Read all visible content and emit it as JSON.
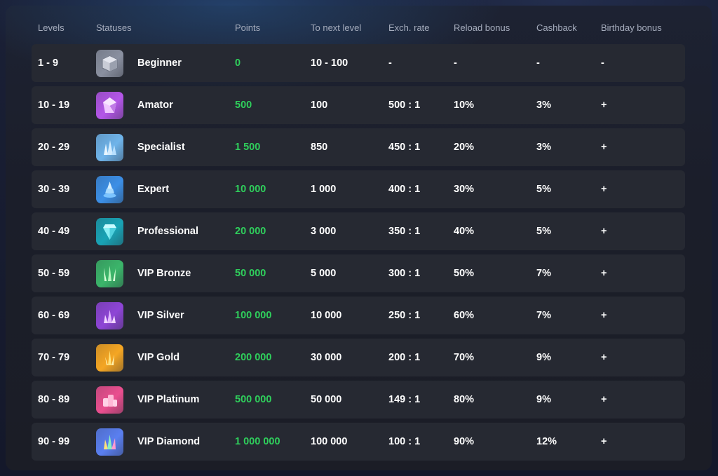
{
  "table": {
    "headers": {
      "levels": "Levels",
      "statuses": "Statuses",
      "points": "Points",
      "next": "To next level",
      "rate": "Exch. rate",
      "reload": "Reload bonus",
      "cashback": "Cashback",
      "birthday": "Birthday bonus"
    },
    "rows": [
      {
        "levels": "1 - 9",
        "status": "Beginner",
        "points": "0",
        "next": "10 - 100",
        "rate": "-",
        "reload": "-",
        "cashback": "-",
        "birthday": "-",
        "icon": "stone-cube-icon",
        "color": "#8a90a0"
      },
      {
        "levels": "10 - 19",
        "status": "Amator",
        "points": "500",
        "next": "100",
        "rate": "500 : 1",
        "reload": "10%",
        "cashback": "3%",
        "birthday": "+",
        "icon": "purple-crystal-icon",
        "color": "#b456e8"
      },
      {
        "levels": "20 - 29",
        "status": "Specialist",
        "points": "1 500",
        "next": "850",
        "rate": "450 : 1",
        "reload": "20%",
        "cashback": "3%",
        "birthday": "+",
        "icon": "ice-crystals-icon",
        "color": "#6fb4ea"
      },
      {
        "levels": "30 - 39",
        "status": "Expert",
        "points": "10 000",
        "next": "1 000",
        "rate": "400 : 1",
        "reload": "30%",
        "cashback": "5%",
        "birthday": "+",
        "icon": "blue-tower-icon",
        "color": "#3c8fe6"
      },
      {
        "levels": "40 - 49",
        "status": "Professional",
        "points": "20 000",
        "next": "3 000",
        "rate": "350 : 1",
        "reload": "40%",
        "cashback": "5%",
        "birthday": "+",
        "icon": "teal-gem-icon",
        "color": "#19a3b5"
      },
      {
        "levels": "50 - 59",
        "status": "VIP Bronze",
        "points": "50 000",
        "next": "5 000",
        "rate": "300 : 1",
        "reload": "50%",
        "cashback": "7%",
        "birthday": "+",
        "icon": "green-shards-icon",
        "color": "#3bb56a"
      },
      {
        "levels": "60 - 69",
        "status": "VIP Silver",
        "points": "100 000",
        "next": "10 000",
        "rate": "250 : 1",
        "reload": "60%",
        "cashback": "7%",
        "birthday": "+",
        "icon": "violet-cluster-icon",
        "color": "#8e45d6"
      },
      {
        "levels": "70 - 79",
        "status": "VIP Gold",
        "points": "200 000",
        "next": "30 000",
        "rate": "200 : 1",
        "reload": "70%",
        "cashback": "9%",
        "birthday": "+",
        "icon": "gold-crystal-icon",
        "color": "#f5a623"
      },
      {
        "levels": "80 - 89",
        "status": "VIP Platinum",
        "points": "500 000",
        "next": "50 000",
        "rate": "149 : 1",
        "reload": "80%",
        "cashback": "9%",
        "birthday": "+",
        "icon": "pink-blocks-icon",
        "color": "#ea4f8f"
      },
      {
        "levels": "90 - 99",
        "status": "VIP Diamond",
        "points": "1 000 000",
        "next": "100 000",
        "rate": "100 : 1",
        "reload": "90%",
        "cashback": "12%",
        "birthday": "+",
        "icon": "rainbow-crystals-icon",
        "color": "#5a7ff0"
      }
    ]
  }
}
